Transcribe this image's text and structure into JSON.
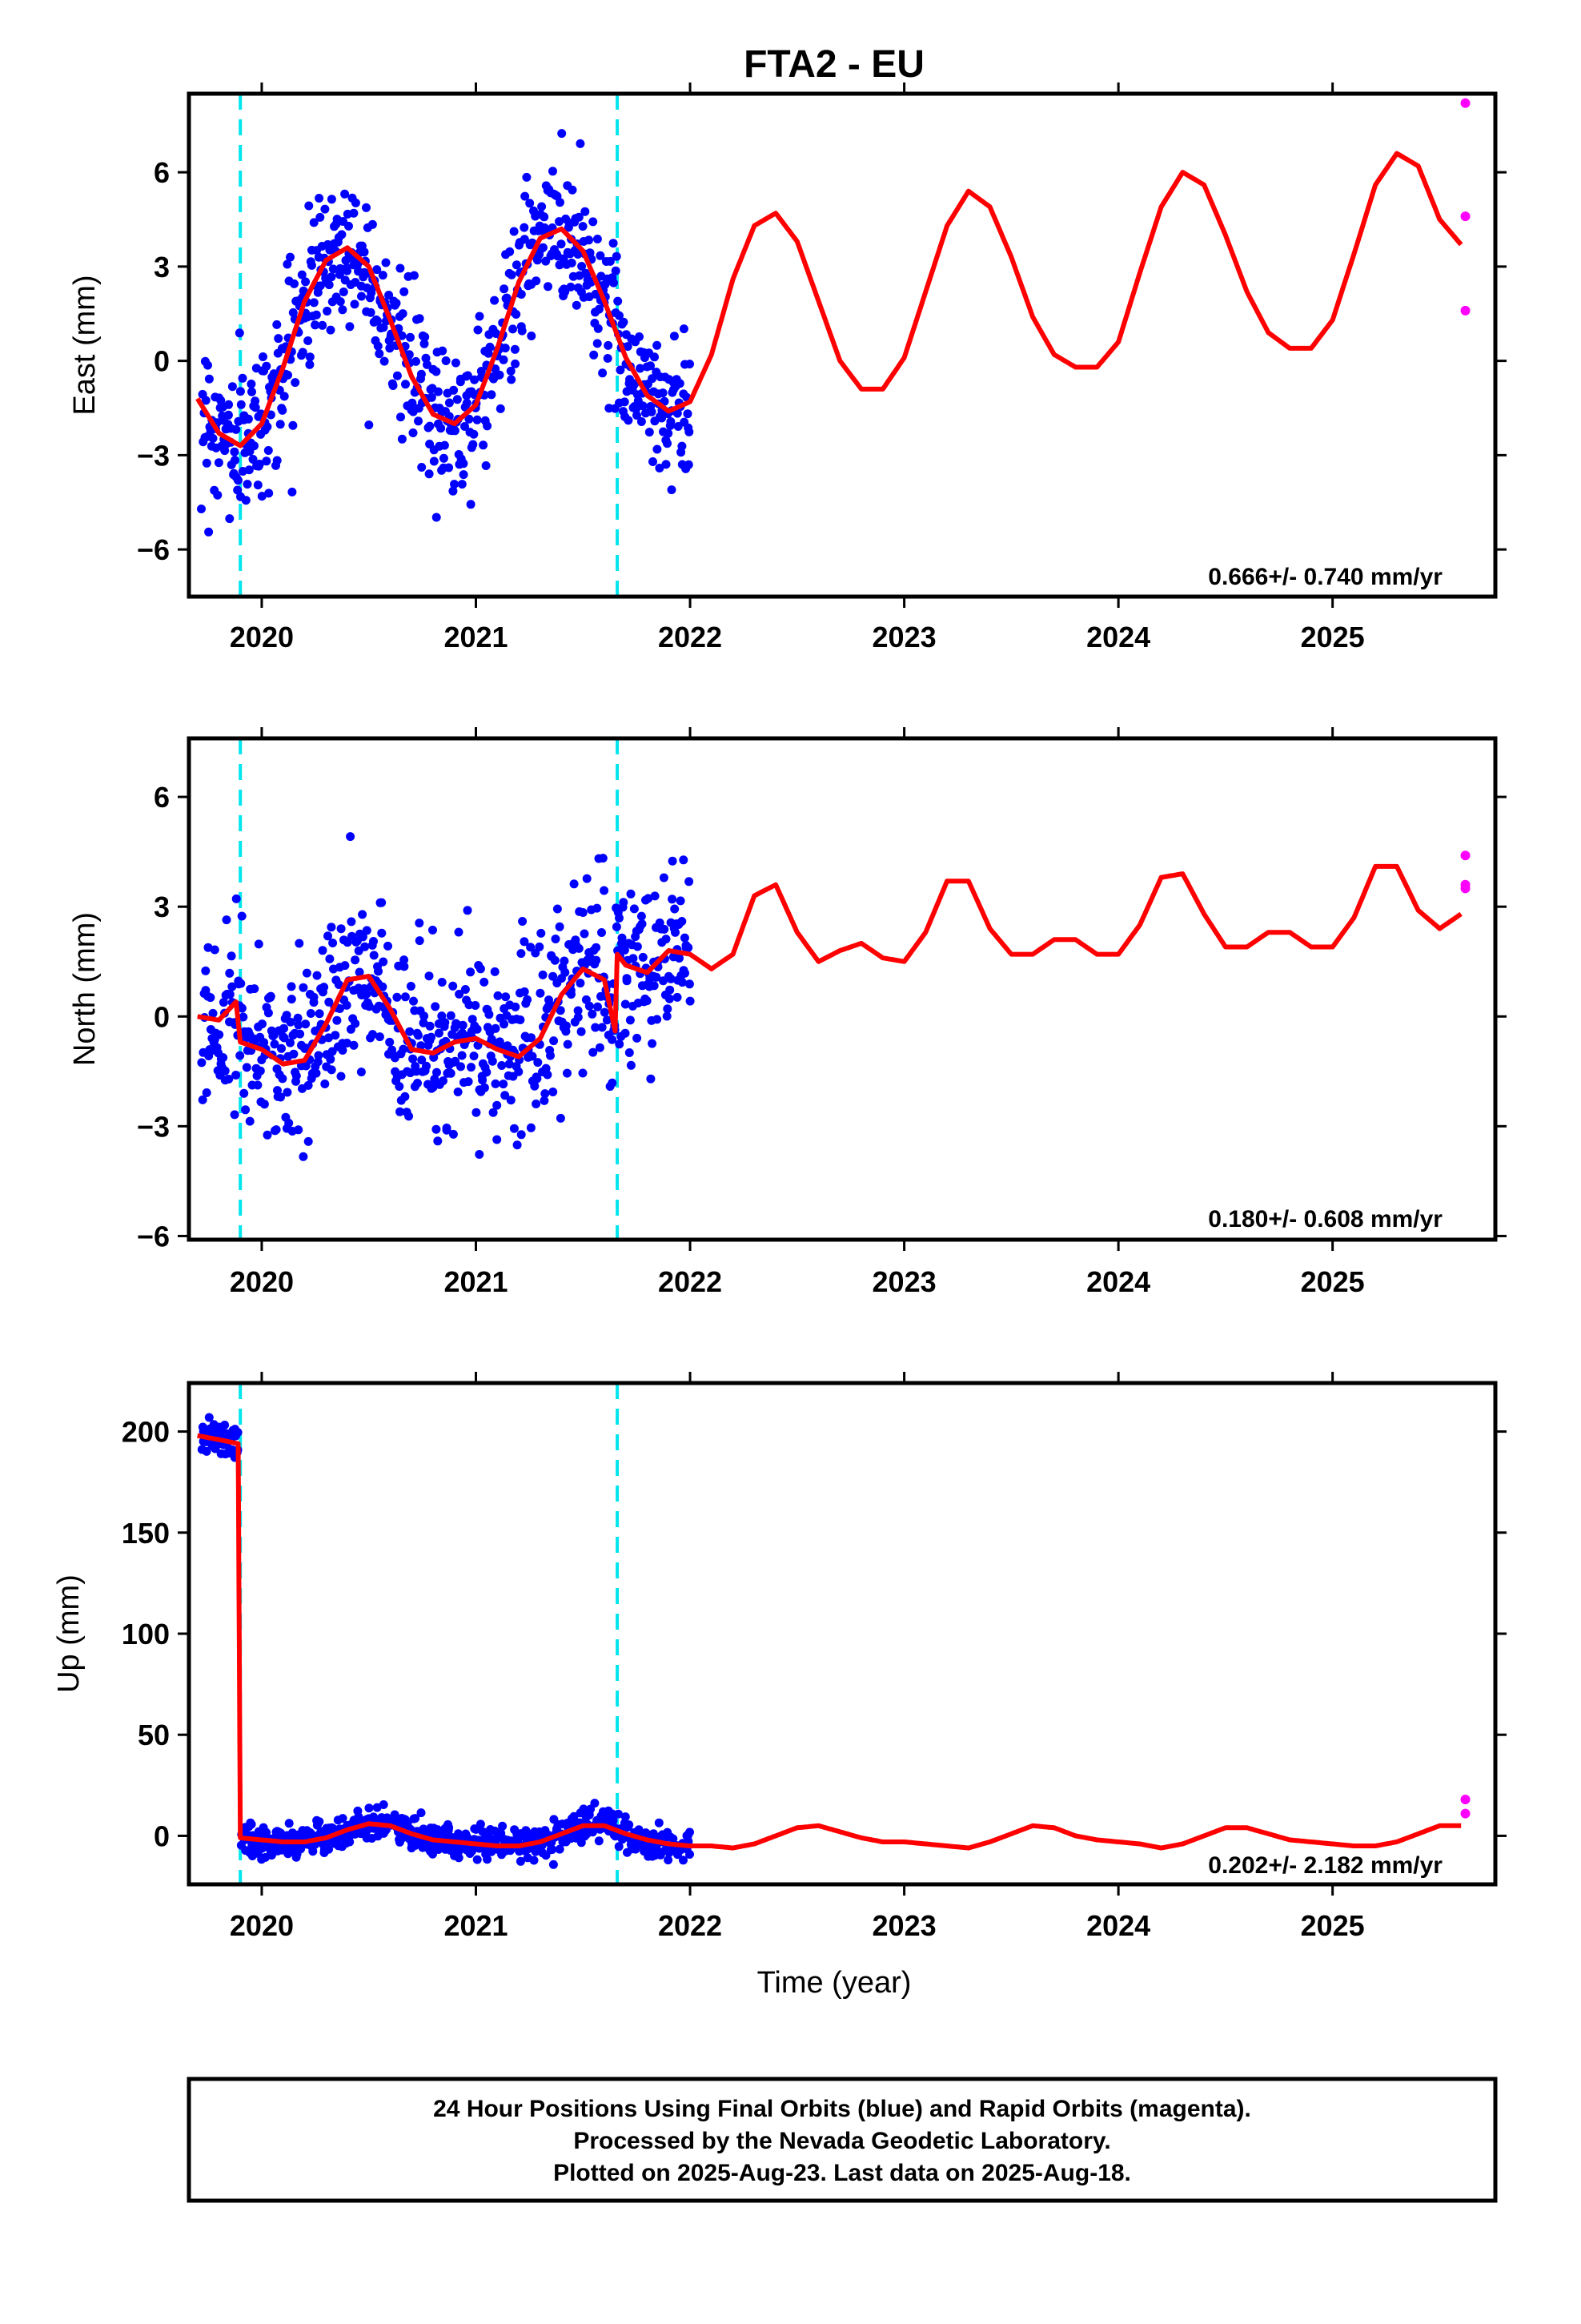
{
  "title": "FTA2 - EU",
  "colors": {
    "final_orbits": "#0000ff",
    "rapid_orbits": "#ff00ff",
    "model": "#ff0000",
    "events": "#00e5ee"
  },
  "chart_data": [
    {
      "type": "scatter",
      "ylabel": "East (mm)",
      "xlim": [
        2019.66,
        2025.76
      ],
      "ylim": [
        -7.5,
        8.5
      ],
      "xticks": [
        2020,
        2021,
        2022,
        2023,
        2024,
        2025
      ],
      "yticks": [
        -6,
        -3,
        0,
        3,
        6
      ],
      "ytick_labels": [
        "−6",
        "−3",
        "0",
        "3",
        "6"
      ],
      "event_lines": [
        2019.9,
        2021.66
      ],
      "rate_label": "0.666+/- 0.740 mm/yr",
      "model": {
        "x": [
          2019.7,
          2019.8,
          2019.9,
          2020.0,
          2020.1,
          2020.2,
          2020.3,
          2020.4,
          2020.5,
          2020.6,
          2020.7,
          2020.8,
          2020.9,
          2021.0,
          2021.1,
          2021.2,
          2021.3,
          2021.4,
          2021.5,
          2021.6,
          2021.7,
          2021.8,
          2021.9,
          2022.0,
          2022.1,
          2022.2,
          2022.3,
          2022.4,
          2022.5,
          2022.6,
          2022.7,
          2022.8,
          2022.9,
          2023.0,
          2023.1,
          2023.2,
          2023.3,
          2023.4,
          2023.5,
          2023.6,
          2023.7,
          2023.8,
          2023.9,
          2024.0,
          2024.1,
          2024.2,
          2024.3,
          2024.4,
          2024.5,
          2024.6,
          2024.7,
          2024.8,
          2024.9,
          2025.0,
          2025.1,
          2025.2,
          2025.3,
          2025.4,
          2025.5,
          2025.6
        ],
        "y": [
          -1.2,
          -2.3,
          -2.7,
          -2.0,
          -0.2,
          1.9,
          3.2,
          3.6,
          3.0,
          1.3,
          -0.5,
          -1.7,
          -2.0,
          -1.4,
          0.4,
          2.5,
          3.9,
          4.2,
          3.5,
          1.9,
          0.1,
          -1.1,
          -1.6,
          -1.3,
          0.2,
          2.6,
          4.3,
          4.7,
          3.8,
          1.9,
          0.0,
          -0.9,
          -0.9,
          0.1,
          2.2,
          4.3,
          5.4,
          4.9,
          3.3,
          1.4,
          0.2,
          -0.2,
          -0.2,
          0.6,
          2.8,
          4.9,
          6.0,
          5.6,
          4.0,
          2.2,
          0.9,
          0.4,
          0.4,
          1.3,
          3.4,
          5.6,
          6.6,
          6.2,
          4.5,
          3.7
        ]
      },
      "rapid_points": [
        {
          "x": 2025.62,
          "y": 8.2
        },
        {
          "x": 2025.62,
          "y": 4.6
        },
        {
          "x": 2025.62,
          "y": 1.6
        }
      ],
      "final_points": {
        "x_start": 2019.72,
        "x_end": 2022.0,
        "n": 700,
        "scatter": 1.2
      }
    },
    {
      "type": "scatter",
      "ylabel": "North (mm)",
      "xlim": [
        2019.66,
        2025.76
      ],
      "ylim": [
        -6.1,
        7.6
      ],
      "xticks": [
        2020,
        2021,
        2022,
        2023,
        2024,
        2025
      ],
      "yticks": [
        -6,
        -3,
        0,
        3,
        6
      ],
      "ytick_labels": [
        "−6",
        "−3",
        "0",
        "3",
        "6"
      ],
      "event_lines": [
        2019.9,
        2021.66
      ],
      "rate_label": "0.180+/- 0.608 mm/yr",
      "model": {
        "x": [
          2019.7,
          2019.8,
          2019.88,
          2019.9,
          2020.0,
          2020.1,
          2020.2,
          2020.3,
          2020.4,
          2020.5,
          2020.6,
          2020.7,
          2020.8,
          2020.9,
          2021.0,
          2021.1,
          2021.2,
          2021.3,
          2021.4,
          2021.5,
          2021.6,
          2021.65,
          2021.66,
          2021.7,
          2021.8,
          2021.9,
          2022.0,
          2022.1,
          2022.2,
          2022.3,
          2022.4,
          2022.5,
          2022.6,
          2022.7,
          2022.8,
          2022.9,
          2023.0,
          2023.1,
          2023.2,
          2023.3,
          2023.4,
          2023.5,
          2023.6,
          2023.7,
          2023.8,
          2023.9,
          2024.0,
          2024.1,
          2024.2,
          2024.3,
          2024.4,
          2024.5,
          2024.6,
          2024.7,
          2024.8,
          2024.9,
          2025.0,
          2025.1,
          2025.2,
          2025.3,
          2025.4,
          2025.5,
          2025.6
        ],
        "y": [
          0.0,
          -0.1,
          0.4,
          -0.7,
          -0.9,
          -1.3,
          -1.2,
          -0.2,
          1.0,
          1.1,
          0.2,
          -0.9,
          -1.0,
          -0.7,
          -0.6,
          -0.9,
          -1.1,
          -0.6,
          0.6,
          1.3,
          1.0,
          -0.4,
          1.7,
          1.4,
          1.2,
          1.8,
          1.7,
          1.3,
          1.7,
          3.3,
          3.6,
          2.3,
          1.5,
          1.8,
          2.0,
          1.6,
          1.5,
          2.3,
          3.7,
          3.7,
          2.4,
          1.7,
          1.7,
          2.1,
          2.1,
          1.7,
          1.7,
          2.5,
          3.8,
          3.9,
          2.8,
          1.9,
          1.9,
          2.3,
          2.3,
          1.9,
          1.9,
          2.7,
          4.1,
          4.1,
          2.9,
          2.4,
          2.8
        ]
      },
      "rapid_points": [
        {
          "x": 2025.62,
          "y": 4.4
        },
        {
          "x": 2025.62,
          "y": 3.6
        },
        {
          "x": 2025.62,
          "y": 3.5
        }
      ],
      "final_points": {
        "x_start": 2019.72,
        "x_end": 2022.0,
        "n": 700,
        "scatter": 1.3
      }
    },
    {
      "type": "scatter",
      "ylabel": "Up (mm)",
      "xlim": [
        2019.66,
        2025.76
      ],
      "ylim": [
        -24,
        224
      ],
      "xticks": [
        2020,
        2021,
        2022,
        2023,
        2024,
        2025
      ],
      "yticks": [
        0,
        50,
        100,
        150,
        200
      ],
      "ytick_labels": [
        "0",
        "50",
        "100",
        "150",
        "200"
      ],
      "event_lines": [
        2019.9,
        2021.66
      ],
      "rate_label": "0.202+/- 2.182 mm/yr",
      "model": {
        "x": [
          2019.7,
          2019.8,
          2019.89,
          2019.9,
          2020.0,
          2020.1,
          2020.2,
          2020.3,
          2020.4,
          2020.5,
          2020.6,
          2020.7,
          2020.8,
          2020.9,
          2021.0,
          2021.1,
          2021.2,
          2021.3,
          2021.4,
          2021.5,
          2021.6,
          2021.7,
          2021.8,
          2021.9,
          2022.0,
          2022.1,
          2022.2,
          2022.3,
          2022.4,
          2022.5,
          2022.6,
          2022.7,
          2022.8,
          2022.9,
          2023.0,
          2023.1,
          2023.2,
          2023.3,
          2023.4,
          2023.5,
          2023.6,
          2023.7,
          2023.8,
          2023.9,
          2024.0,
          2024.1,
          2024.2,
          2024.3,
          2024.4,
          2024.5,
          2024.6,
          2024.7,
          2024.8,
          2024.9,
          2025.0,
          2025.1,
          2025.2,
          2025.3,
          2025.4,
          2025.5,
          2025.6
        ],
        "y": [
          198,
          196,
          194,
          -1,
          -2,
          -3,
          -3,
          -1,
          3,
          6,
          5,
          1,
          -2,
          -3,
          -4,
          -5,
          -5,
          -3,
          1,
          5,
          5,
          1,
          -2,
          -4,
          -5,
          -5,
          -6,
          -4,
          0,
          4,
          5,
          2,
          -1,
          -3,
          -3,
          -4,
          -5,
          -6,
          -3,
          1,
          5,
          4,
          0,
          -2,
          -3,
          -4,
          -6,
          -4,
          0,
          4,
          4,
          1,
          -2,
          -3,
          -4,
          -5,
          -5,
          -3,
          1,
          5,
          5
        ]
      },
      "rapid_points": [
        {
          "x": 2025.62,
          "y": 18
        },
        {
          "x": 2025.62,
          "y": 11
        }
      ],
      "final_points": {
        "x_start": 2019.72,
        "x_end": 2022.0,
        "n": 700,
        "scatter": 4
      }
    }
  ],
  "xlabel": "Time (year)",
  "footer": {
    "line1": "24 Hour Positions Using Final Orbits (blue) and Rapid Orbits (magenta).",
    "line2": "Processed by the Nevada Geodetic Laboratory.",
    "line3": "Plotted on 2025-Aug-23. Last data on 2025-Aug-18."
  }
}
